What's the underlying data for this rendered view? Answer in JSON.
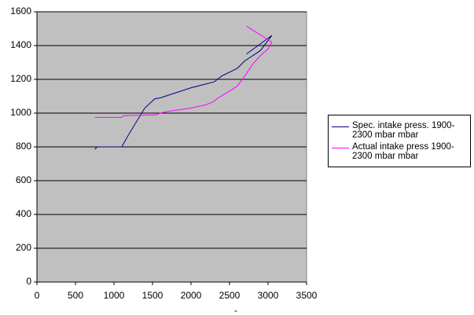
{
  "chart_data": {
    "type": "line",
    "x_label": "-",
    "xlim": [
      0,
      3500
    ],
    "xticks": [
      0,
      500,
      1000,
      1500,
      2000,
      2500,
      3000,
      3500
    ],
    "ylim": [
      0,
      1600
    ],
    "yticks": [
      0,
      200,
      400,
      600,
      800,
      1000,
      1200,
      1400,
      1600
    ],
    "grid": true,
    "legend": "right",
    "background": "#c0c0c0",
    "series": [
      {
        "name": "Spec. intake press. 1900-2300 mbar  mbar",
        "color": "#000080",
        "x": [
          750,
          780,
          1100,
          1200,
          1400,
          1530,
          1600,
          2000,
          2300,
          2400,
          2600,
          2700,
          2900,
          3050,
          2720
        ],
        "values": [
          785,
          800,
          800,
          880,
          1030,
          1085,
          1090,
          1150,
          1185,
          1220,
          1265,
          1310,
          1370,
          1460,
          1350
        ]
      },
      {
        "name": "Actual intake press 1900-2300 mbar  mbar",
        "color": "#ff00ff",
        "x": [
          750,
          1100,
          1120,
          1550,
          1600,
          1700,
          2000,
          2200,
          2300,
          2350,
          2500,
          2600,
          2700,
          2800,
          2900,
          3000,
          3050,
          2720
        ],
        "values": [
          975,
          975,
          985,
          990,
          1000,
          1010,
          1030,
          1050,
          1070,
          1090,
          1130,
          1160,
          1220,
          1290,
          1340,
          1380,
          1420,
          1515
        ]
      }
    ]
  }
}
